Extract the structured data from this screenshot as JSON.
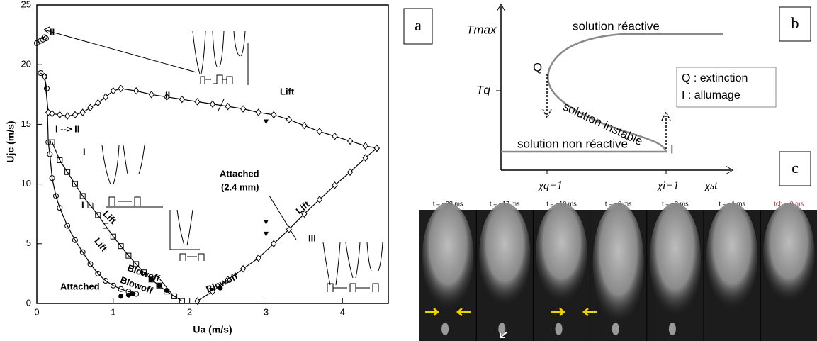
{
  "chart_data": {
    "type": "line",
    "xlabel": "Ua  (m/s)",
    "ylabel": "Ujc  (m/s)",
    "xlim": [
      0,
      4.6
    ],
    "ylim": [
      0,
      25
    ],
    "xticks": [
      0,
      1,
      2,
      3,
      4
    ],
    "yticks": [
      0,
      5,
      10,
      15,
      20,
      25
    ],
    "series": [
      {
        "marker": "circle",
        "line": true,
        "color": "#000000",
        "x": [
          0.05,
          0.1,
          0.13,
          0.15,
          0.17,
          0.2,
          0.25,
          0.3,
          0.4,
          0.5,
          0.6,
          0.7,
          0.8,
          0.9,
          1.0,
          1.1,
          1.2,
          1.3
        ],
        "values": [
          19.3,
          19,
          18,
          13.5,
          12.5,
          10.5,
          9,
          8,
          6.5,
          5.3,
          4.3,
          3.3,
          2.5,
          1.9,
          1.5,
          1.2,
          1.0,
          0.8
        ]
      },
      {
        "marker": "square",
        "line": true,
        "color": "#000000",
        "x": [
          0.2,
          0.3,
          0.4,
          0.5,
          0.6,
          0.7,
          0.8,
          0.9,
          1.0,
          1.1,
          1.2,
          1.3,
          1.4,
          1.5,
          1.6,
          1.7,
          1.8,
          1.9
        ],
        "values": [
          13.5,
          12,
          11,
          10,
          9,
          8.2,
          7.4,
          6.5,
          5.6,
          4.8,
          4,
          3.3,
          2.6,
          2,
          1.5,
          1,
          0.6,
          0.2
        ]
      },
      {
        "marker": "dot",
        "line": false,
        "color": "#000000",
        "x": [
          1.1,
          1.2,
          1.25,
          1.5,
          1.6,
          1.7,
          2.3,
          2.4
        ],
        "values": [
          0.6,
          0.7,
          0.8,
          2,
          1.5,
          1.1,
          1.1,
          1.3
        ]
      },
      {
        "marker": "diamond",
        "line": true,
        "color": "#000000",
        "x": [
          0.1,
          0.15,
          0.2,
          0.3,
          0.4,
          0.5,
          0.6,
          0.7,
          0.8,
          0.9,
          1.0,
          1.1,
          1.3,
          1.5,
          1.7,
          1.9,
          2.1,
          2.3,
          2.5,
          2.7,
          2.9,
          3.1,
          3.3,
          3.5,
          3.7,
          3.9,
          4.1,
          4.3,
          4.45
        ],
        "values": [
          19,
          16,
          15.9,
          15.8,
          15.7,
          15.8,
          16,
          16.4,
          16.8,
          17.3,
          17.8,
          18,
          17.8,
          17.5,
          17.3,
          17.1,
          16.9,
          16.7,
          16.5,
          16.3,
          16.0,
          15.8,
          15.4,
          14.9,
          14.4,
          14,
          13.6,
          13.2,
          13
        ]
      },
      {
        "marker": "diamond",
        "line": true,
        "color": "#000000",
        "x": [
          2.1,
          2.3,
          2.5,
          2.7,
          2.9,
          3.1,
          3.3,
          3.5,
          3.7,
          3.9,
          4.1,
          4.3,
          4.45
        ],
        "values": [
          0.2,
          1,
          2,
          2.9,
          3.8,
          5,
          6.2,
          7.5,
          8.7,
          9.9,
          11,
          12.2,
          13
        ]
      },
      {
        "marker": "triangle",
        "line": false,
        "color": "#000000",
        "x": [
          3.0,
          3.0,
          3.0
        ],
        "values": [
          15.2,
          6.8,
          5.8
        ]
      },
      {
        "marker": "circle",
        "line": false,
        "color": "#000000",
        "x": [
          0.0,
          0.05,
          0.08,
          0.1,
          0.12
        ],
        "values": [
          21.8,
          22,
          22.1,
          22.3,
          22.2
        ]
      }
    ],
    "annotations": [
      "II",
      "I --> II",
      "II",
      "Lift",
      "Attached",
      "(2.4 mm)",
      "I",
      "I",
      "Lift",
      "Lift",
      "Blowoff",
      "Blowoff",
      "Blowoff",
      "Attached",
      "III",
      "Lift"
    ]
  },
  "panel_labels": [
    "a",
    "b",
    "c"
  ],
  "diagram_b": {
    "y_labels": [
      "Tmax",
      "Tq"
    ],
    "x_labels": [
      "χq−1",
      "χi−1",
      "χst"
    ],
    "curve_labels": [
      "solution réactive",
      "solution instable",
      "solution non réactive"
    ],
    "points": [
      "Q",
      "I"
    ],
    "legend": [
      "Q : extinction",
      "I : allumage"
    ]
  },
  "images_c": {
    "frames": [
      "t = −28 ms",
      "t = −17 ms",
      "t = −10 ms",
      "t = −6 ms",
      "t = −3 ms",
      "t = −1 ms",
      "tch = 0 ms"
    ]
  }
}
